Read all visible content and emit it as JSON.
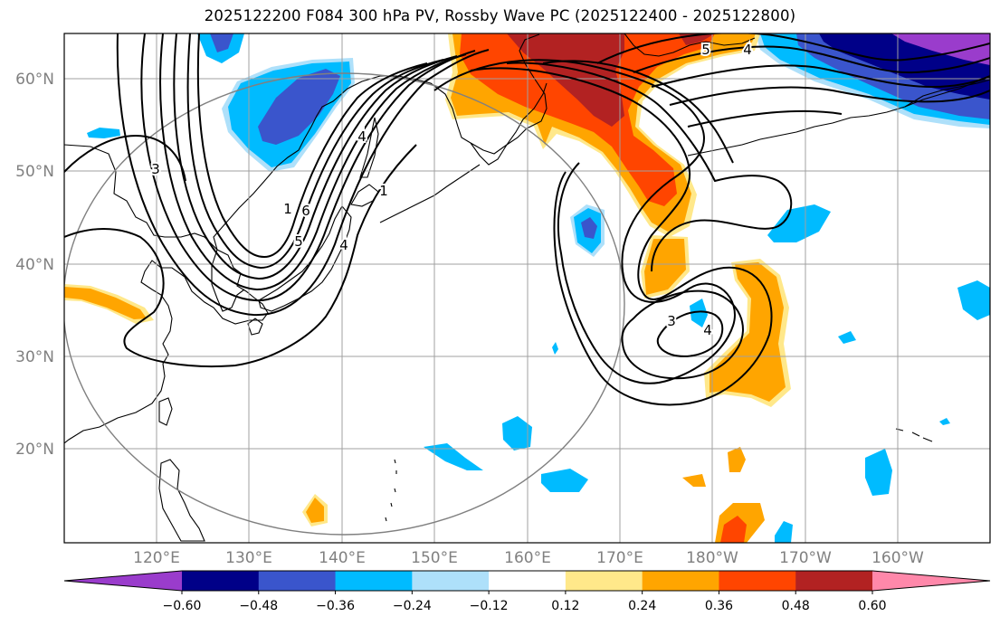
{
  "title": "2025122200 F084 300 hPa PV, Rossby Wave PC (2025122400 - 2025122800)",
  "lat_labels": [
    "60°N",
    "50°N",
    "40°N",
    "30°N",
    "20°N"
  ],
  "lon_labels": [
    "120°E",
    "130°E",
    "140°E",
    "150°E",
    "160°E",
    "170°E",
    "180°W",
    "170°W",
    "160°W"
  ],
  "colorbar": {
    "tick_labels": [
      "−0.60",
      "−0.48",
      "−0.36",
      "−0.24",
      "−0.12",
      "0.12",
      "0.24",
      "0.36",
      "0.48",
      "0.60"
    ],
    "colors": [
      "#9a3ccc",
      "#000088",
      "#3a55cc",
      "#00bbff",
      "#aee0fa",
      "#ffffff",
      "#ffe88a",
      "#ffa500",
      "#ff4500",
      "#b22222",
      "#ff88aa"
    ]
  },
  "contour_labels": [
    "3",
    "4",
    "5",
    "6",
    "1",
    "1",
    "4",
    "5",
    "4",
    "3",
    "4"
  ],
  "chart_data": {
    "type": "heatmap",
    "title": "2025122200 F084 300 hPa PV, Rossby Wave PC (2025122400 - 2025122800)",
    "x_range_deg_lon": [
      110,
      210
    ],
    "y_range_deg_lat": [
      10,
      65
    ],
    "shaded_variable": "Rossby Wave PC",
    "shading_levels": [
      -0.6,
      -0.48,
      -0.36,
      -0.24,
      -0.12,
      0.12,
      0.24,
      0.36,
      0.48,
      0.6
    ],
    "contour_variable": "300 hPa PV",
    "contour_levels_labeled": [
      1,
      3,
      4,
      5,
      6
    ],
    "grid": true
  }
}
